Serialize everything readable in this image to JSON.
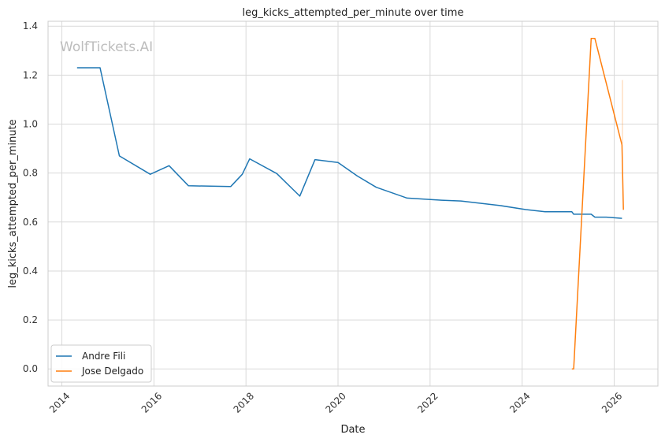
{
  "chart_data": {
    "type": "line",
    "title": "leg_kicks_attempted_per_minute over time",
    "xlabel": "Date",
    "ylabel": "leg_kicks_attempted_per_minute",
    "watermark": "WolfTickets.AI",
    "xlim": [
      2013.7,
      2026.95
    ],
    "ylim": [
      -0.07,
      1.42
    ],
    "x_ticks": [
      2014,
      2016,
      2018,
      2020,
      2022,
      2024,
      2026
    ],
    "x_tick_labels": [
      "2014",
      "2016",
      "2018",
      "2020",
      "2022",
      "2024",
      "2026"
    ],
    "y_ticks": [
      0.0,
      0.2,
      0.4,
      0.6,
      0.8,
      1.0,
      1.2,
      1.4
    ],
    "y_tick_labels": [
      "0.0",
      "0.2",
      "0.4",
      "0.6",
      "0.8",
      "1.0",
      "1.2",
      "1.4"
    ],
    "grid": true,
    "legend_position": "bottom-left",
    "series": [
      {
        "name": "Andre Fili",
        "color": "#1f77b4",
        "x": [
          2014.33,
          2014.83,
          2015.25,
          2015.92,
          2016.33,
          2016.75,
          2017.67,
          2017.92,
          2018.08,
          2018.67,
          2019.17,
          2019.5,
          2020.0,
          2020.42,
          2020.83,
          2021.5,
          2022.25,
          2022.67,
          2023.5,
          2024.08,
          2024.5,
          2025.08,
          2025.12,
          2025.5,
          2025.58,
          2025.83,
          2026.17
        ],
        "y": [
          1.23,
          1.23,
          0.87,
          0.795,
          0.83,
          0.748,
          0.745,
          0.795,
          0.858,
          0.798,
          0.706,
          0.855,
          0.843,
          0.788,
          0.742,
          0.698,
          0.689,
          0.686,
          0.668,
          0.651,
          0.642,
          0.642,
          0.632,
          0.632,
          0.62,
          0.62,
          0.615
        ]
      },
      {
        "name": "Jose Delgado",
        "color": "#ff7f0e",
        "x": [
          2025.08,
          2025.12,
          2025.5,
          2025.58,
          2026.17,
          2026.2
        ],
        "y": [
          0.0,
          0.0,
          1.35,
          1.35,
          0.915,
          0.65
        ]
      }
    ],
    "faint_band": {
      "color": "#ff7f0e",
      "x": 2026.18,
      "y_range": [
        0.92,
        1.18
      ]
    }
  }
}
